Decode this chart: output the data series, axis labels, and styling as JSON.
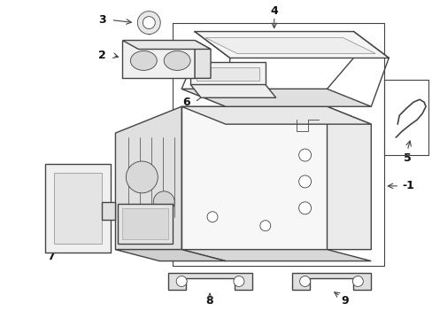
{
  "background_color": "#ffffff",
  "line_color": "#444444",
  "text_color": "#111111",
  "fig_width": 4.89,
  "fig_height": 3.6,
  "dpi": 100
}
